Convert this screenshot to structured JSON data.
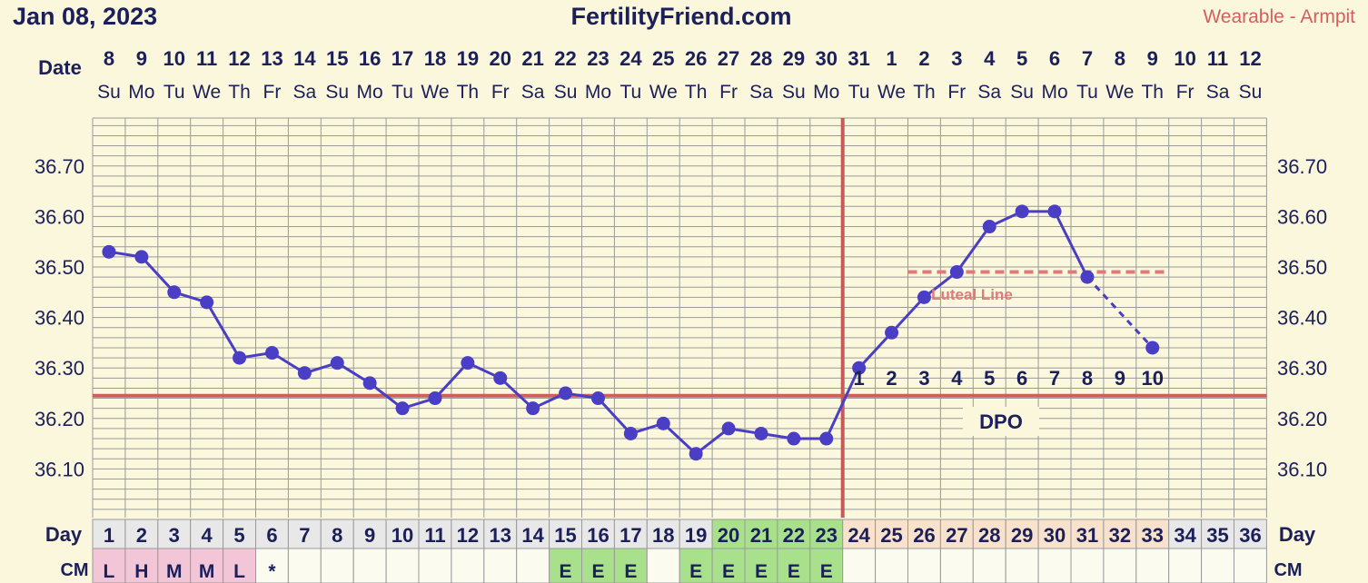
{
  "header": {
    "date": "Jan 08, 2023",
    "site": "FertilityFriend.com",
    "method": "Wearable - Armpit"
  },
  "labels": {
    "date_row": "Date",
    "day_row": "Day",
    "cm_row": "CM",
    "dpo": "DPO",
    "luteal_line": "Luteal Line"
  },
  "colors": {
    "background": "#fbf7dc",
    "grid": "#9a9a9a",
    "series": "#4a3fc4",
    "coverline": "#cf5f5f",
    "ovulation": "#c95858",
    "luteal": "#e07a7a",
    "pink_cell": "#f2c6d6",
    "green_cell": "#a8e08c",
    "peach_cell": "#f8e2cc",
    "grey_cell": "#e8e8e8",
    "header_text": "#1b1f5a",
    "method_text": "#d35f5f"
  },
  "chart_data": {
    "type": "line",
    "title": "FertilityFriend.com",
    "yticks": [
      "36.70",
      "36.60",
      "36.50",
      "36.40",
      "36.30",
      "36.20",
      "36.10"
    ],
    "ylim": [
      36.0,
      36.78
    ],
    "grid": true,
    "dates": [
      "8",
      "9",
      "10",
      "11",
      "12",
      "13",
      "14",
      "15",
      "16",
      "17",
      "18",
      "19",
      "20",
      "21",
      "22",
      "23",
      "24",
      "25",
      "26",
      "27",
      "28",
      "29",
      "30",
      "31",
      "1",
      "2",
      "3",
      "4",
      "5",
      "6",
      "7",
      "8",
      "9",
      "10",
      "11",
      "12"
    ],
    "weekdays": [
      "Su",
      "Mo",
      "Tu",
      "We",
      "Th",
      "Fr",
      "Sa",
      "Su",
      "Mo",
      "Tu",
      "We",
      "Th",
      "Fr",
      "Sa",
      "Su",
      "Mo",
      "Tu",
      "We",
      "Th",
      "Fr",
      "Sa",
      "Su",
      "Mo",
      "Tu",
      "We",
      "Th",
      "Fr",
      "Sa",
      "Su",
      "Mo",
      "Tu",
      "We",
      "Th",
      "Fr",
      "Sa",
      "Su"
    ],
    "days": [
      "1",
      "2",
      "3",
      "4",
      "5",
      "6",
      "7",
      "8",
      "9",
      "10",
      "11",
      "12",
      "13",
      "14",
      "15",
      "16",
      "17",
      "18",
      "19",
      "20",
      "21",
      "22",
      "23",
      "24",
      "25",
      "26",
      "27",
      "28",
      "29",
      "30",
      "31",
      "32",
      "33",
      "34",
      "35",
      "36"
    ],
    "temps": [
      36.53,
      36.52,
      36.45,
      36.43,
      36.32,
      36.33,
      36.29,
      36.31,
      36.27,
      36.22,
      36.24,
      36.31,
      36.28,
      36.22,
      36.25,
      36.24,
      36.17,
      36.19,
      36.13,
      36.18,
      36.17,
      36.16,
      36.16,
      36.3,
      36.37,
      36.44,
      36.49,
      36.58,
      36.61,
      36.61,
      36.48,
      null,
      36.34
    ],
    "coverline": 36.245,
    "ovulation_day": 23,
    "luteal_line": {
      "value": 36.49,
      "from_day": 26,
      "to_day": 33
    },
    "dpo_labels": [
      "1",
      "2",
      "3",
      "4",
      "5",
      "6",
      "7",
      "8",
      "9",
      "10"
    ],
    "dpo_start_day": 24,
    "cm": [
      "L",
      "H",
      "M",
      "M",
      "L",
      "*",
      "",
      "",
      "",
      "",
      "",
      "",
      "",
      "",
      "E",
      "E",
      "E",
      "",
      "E",
      "E",
      "E",
      "E",
      "E",
      "",
      "",
      "",
      "",
      "",
      "",
      "",
      "",
      "",
      "",
      "",
      "",
      ""
    ],
    "cm_colors": [
      "pink",
      "pink",
      "pink",
      "pink",
      "pink",
      "",
      "",
      "",
      "",
      "",
      "",
      "",
      "",
      "",
      "green",
      "green",
      "green",
      "",
      "green",
      "green",
      "green",
      "green",
      "green",
      "",
      "",
      "",
      "",
      "",
      "",
      "",
      "",
      "",
      "",
      "",
      "",
      ""
    ],
    "day_colors": [
      "grey",
      "grey",
      "grey",
      "grey",
      "grey",
      "grey",
      "grey",
      "grey",
      "grey",
      "grey",
      "grey",
      "grey",
      "grey",
      "grey",
      "grey",
      "grey",
      "grey",
      "grey",
      "grey",
      "green",
      "green",
      "green",
      "green",
      "peach",
      "peach",
      "peach",
      "peach",
      "peach",
      "peach",
      "peach",
      "peach",
      "peach",
      "peach",
      "grey",
      "grey",
      "grey"
    ]
  }
}
